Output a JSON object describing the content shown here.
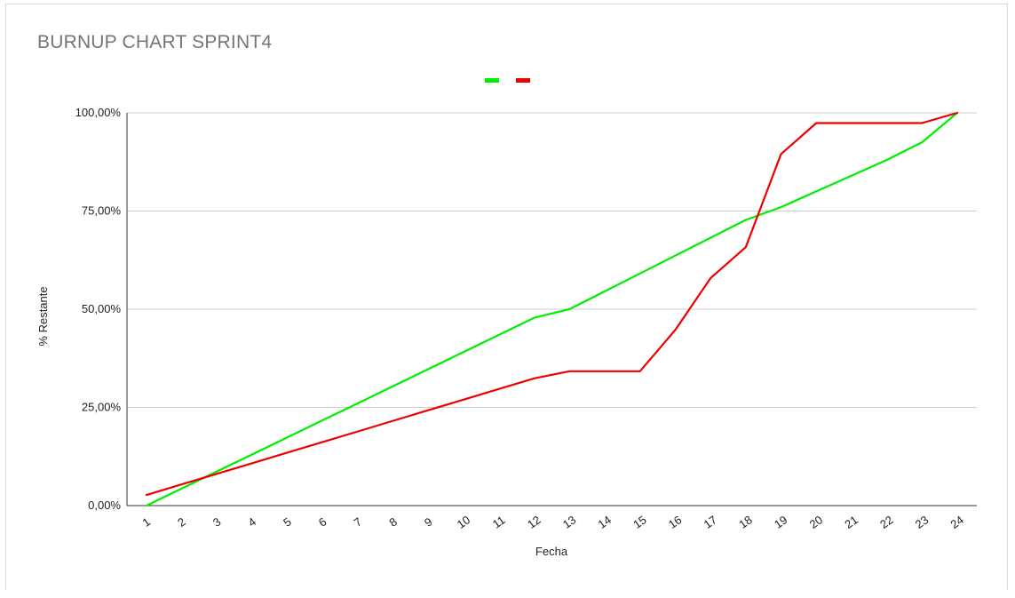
{
  "title": "BURNUP CHART SPRINT4",
  "chart_data": {
    "type": "line",
    "title": "BURNUP CHART SPRINT4",
    "xlabel": "Fecha",
    "ylabel": "% Restante",
    "x": [
      "1",
      "2",
      "3",
      "4",
      "5",
      "6",
      "7",
      "8",
      "9",
      "10",
      "11",
      "12",
      "13",
      "14",
      "15",
      "16",
      "17",
      "18",
      "19",
      "20",
      "21",
      "22",
      "23",
      "24"
    ],
    "yticks": [
      "0,00%",
      "25,00%",
      "50,00%",
      "75,00%",
      "100,00%"
    ],
    "ylim": [
      0,
      100
    ],
    "grid": true,
    "legend": "top-center",
    "series": [
      {
        "color": "#00ee00",
        "values": [
          0,
          4.35,
          8.7,
          13.04,
          17.39,
          21.74,
          26.09,
          30.43,
          34.78,
          39.13,
          43.48,
          47.83,
          50.0,
          54.55,
          59.09,
          63.64,
          68.18,
          72.73,
          76.0,
          80.0,
          84.0,
          88.0,
          92.5,
          100.0
        ]
      },
      {
        "color": "#ee0000",
        "values": [
          2.7,
          5.4,
          8.1,
          10.8,
          13.5,
          16.2,
          18.9,
          21.6,
          24.3,
          27.0,
          29.7,
          32.4,
          34.2,
          34.2,
          34.2,
          44.7,
          57.9,
          65.8,
          89.5,
          97.4,
          97.4,
          97.4,
          97.4,
          100.0
        ]
      }
    ]
  }
}
